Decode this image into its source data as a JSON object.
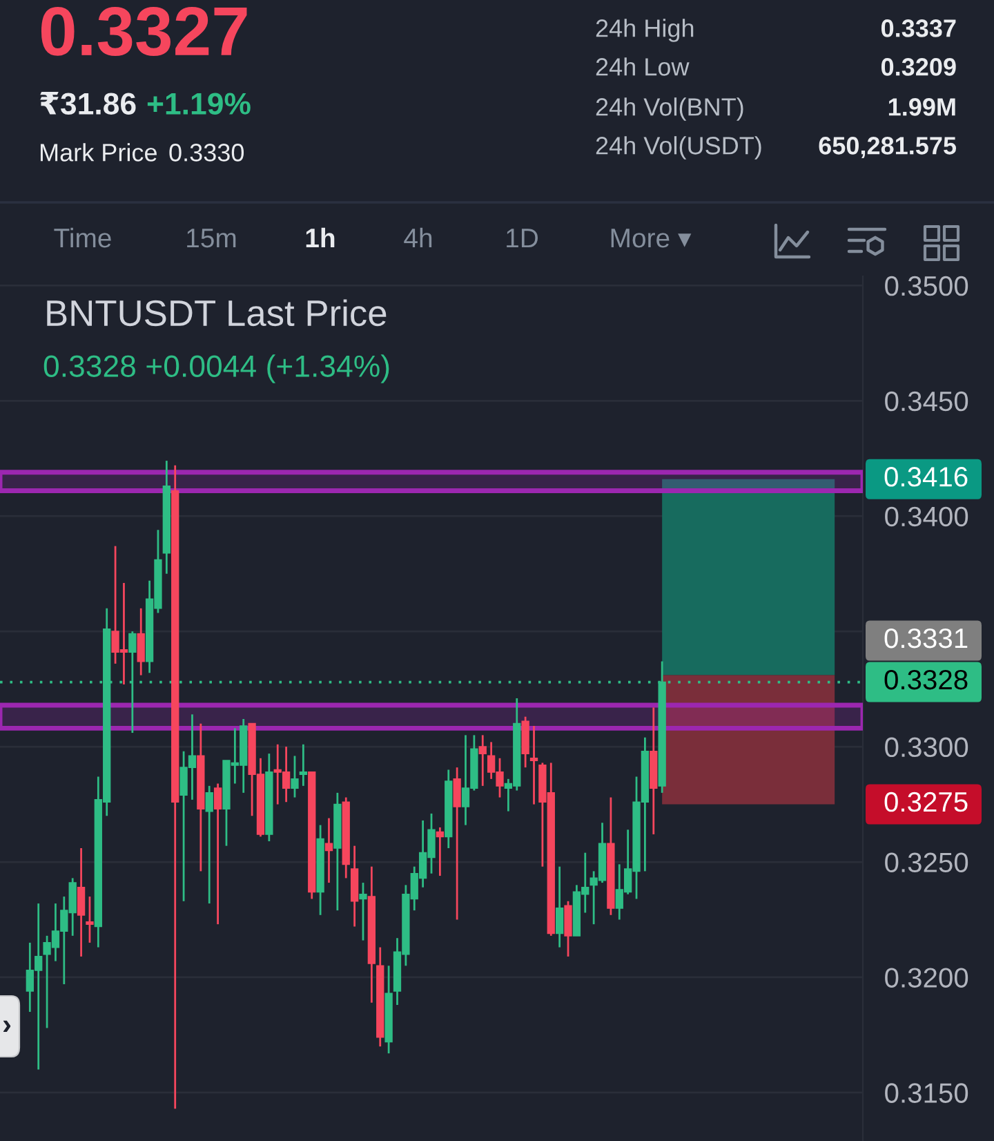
{
  "chart_data": {
    "type": "candlestick",
    "title": "BNTUSDT Last Price",
    "subtitle": "0.3328 +0.0044 (+1.34%)",
    "categories": [
      null,
      null,
      null,
      null,
      null,
      null,
      null,
      null,
      null,
      null,
      null,
      null,
      null,
      null,
      null,
      null,
      null,
      null,
      null,
      null,
      null,
      null,
      null,
      null,
      null,
      null,
      null,
      null,
      null,
      null,
      null,
      null,
      null,
      null,
      null,
      null,
      null,
      null,
      null,
      null,
      null,
      null,
      null,
      null,
      null,
      null,
      null,
      null,
      null,
      null,
      null,
      null,
      null,
      null,
      null,
      null,
      null,
      null,
      null,
      null,
      null,
      null,
      null,
      null,
      null,
      null,
      null,
      null,
      null,
      null,
      null,
      null,
      null,
      null,
      null,
      null,
      null,
      null,
      null,
      null,
      null,
      null,
      null,
      null,
      null,
      null,
      null,
      null,
      null,
      null,
      null,
      null,
      null,
      null,
      null,
      null,
      null,
      null,
      null,
      null,
      null
    ],
    "ohlc": [
      null,
      null,
      null,
      [
        0.3194,
        0.3215,
        0.3185,
        0.3203
      ],
      [
        0.3203,
        0.3232,
        0.316,
        0.3209
      ],
      [
        0.321,
        0.3218,
        0.3178,
        0.3215
      ],
      [
        0.3213,
        0.3232,
        0.3207,
        0.322
      ],
      [
        0.322,
        0.3235,
        0.3197,
        0.3229
      ],
      [
        0.3228,
        0.3243,
        0.3218,
        0.3241
      ],
      [
        0.3239,
        0.3256,
        0.3209,
        0.3227
      ],
      [
        0.3224,
        0.3235,
        0.3215,
        0.3223
      ],
      [
        0.3222,
        0.3287,
        0.3213,
        0.3277
      ],
      [
        0.3276,
        0.336,
        0.327,
        0.3351
      ],
      [
        0.335,
        0.3387,
        0.3336,
        0.3341
      ],
      [
        0.3342,
        0.3371,
        0.3327,
        0.3341
      ],
      [
        0.3341,
        0.335,
        0.3306,
        0.3349
      ],
      [
        0.3349,
        0.336,
        0.3331,
        0.3337
      ],
      [
        0.3337,
        0.3372,
        0.3332,
        0.3364
      ],
      [
        0.336,
        0.3394,
        0.3358,
        0.3381
      ],
      [
        0.3384,
        0.3424,
        0.3375,
        0.3413
      ],
      [
        0.3411,
        0.3422,
        0.3143,
        0.3276
      ],
      [
        0.3279,
        0.3298,
        0.3233,
        0.3291
      ],
      [
        0.3291,
        0.3314,
        0.3277,
        0.3296
      ],
      [
        0.3296,
        0.331,
        0.3246,
        0.3273
      ],
      [
        0.3272,
        0.3283,
        0.3232,
        0.328
      ],
      [
        0.3282,
        0.3284,
        0.3223,
        0.3273
      ],
      [
        0.3273,
        0.3294,
        0.3257,
        0.3294
      ],
      [
        0.3292,
        0.3308,
        0.3284,
        0.3293
      ],
      [
        0.3292,
        0.3312,
        0.328,
        0.3309
      ],
      [
        0.331,
        0.331,
        0.327,
        0.3288
      ],
      [
        0.3288,
        0.3295,
        0.3261,
        0.3262
      ],
      [
        0.3262,
        0.3297,
        0.3259,
        0.3289
      ],
      [
        0.329,
        0.3301,
        0.3275,
        0.3289
      ],
      [
        0.3289,
        0.33,
        0.3276,
        0.3282
      ],
      [
        0.3282,
        0.3296,
        0.3278,
        0.3286
      ],
      [
        0.3288,
        0.3301,
        0.3283,
        0.3289
      ],
      [
        0.3289,
        0.3289,
        0.3234,
        0.3237
      ],
      [
        0.3237,
        0.3266,
        0.3227,
        0.326
      ],
      [
        0.3258,
        0.3269,
        0.3241,
        0.3255
      ],
      [
        0.3256,
        0.328,
        0.3229,
        0.3275
      ],
      [
        0.3276,
        0.3278,
        0.3243,
        0.3249
      ],
      [
        0.3247,
        0.3257,
        0.3222,
        0.3233
      ],
      [
        0.3234,
        0.3241,
        0.3216,
        0.3236
      ],
      [
        0.3235,
        0.3248,
        0.3189,
        0.3206
      ],
      [
        0.3205,
        0.3213,
        0.317,
        0.3174
      ],
      [
        0.3172,
        0.3205,
        0.3167,
        0.3193
      ],
      [
        0.3194,
        0.3217,
        0.3188,
        0.3211
      ],
      [
        0.321,
        0.324,
        0.3205,
        0.3236
      ],
      [
        0.3234,
        0.3248,
        0.3229,
        0.3245
      ],
      [
        0.3243,
        0.3268,
        0.3239,
        0.3254
      ],
      [
        0.3252,
        0.3271,
        0.3245,
        0.3264
      ],
      [
        0.3263,
        0.3265,
        0.3244,
        0.3261
      ],
      [
        0.3261,
        0.329,
        0.3256,
        0.3285
      ],
      [
        0.3286,
        0.3291,
        0.3225,
        0.3274
      ],
      [
        0.3274,
        0.3305,
        0.3266,
        0.3282
      ],
      [
        0.3282,
        0.3305,
        0.3281,
        0.3299
      ],
      [
        0.33,
        0.3305,
        0.3283,
        0.3297
      ],
      [
        0.3296,
        0.3302,
        0.3286,
        0.3289
      ],
      [
        0.3289,
        0.3295,
        0.3278,
        0.3283
      ],
      [
        0.3282,
        0.3286,
        0.3272,
        0.3284
      ],
      [
        0.3283,
        0.3321,
        0.3281,
        0.331
      ],
      [
        0.3311,
        0.3313,
        0.3291,
        0.3297
      ],
      [
        0.3295,
        0.3309,
        0.3275,
        0.3294
      ],
      [
        0.3292,
        0.3293,
        0.3248,
        0.3276
      ],
      [
        0.328,
        0.3293,
        0.3218,
        0.3219
      ],
      [
        0.3219,
        0.3248,
        0.3213,
        0.323
      ],
      [
        0.3231,
        0.3233,
        0.3209,
        0.3218
      ],
      [
        0.3218,
        0.324,
        0.3218,
        0.3237
      ],
      [
        0.3236,
        0.3254,
        0.3228,
        0.3239
      ],
      [
        0.324,
        0.3246,
        0.3223,
        0.3243
      ],
      [
        0.3242,
        0.3267,
        0.3241,
        0.3258
      ],
      [
        0.3258,
        0.3278,
        0.3227,
        0.323
      ],
      [
        0.323,
        0.3249,
        0.3225,
        0.3238
      ],
      [
        0.3237,
        0.3264,
        0.3236,
        0.3247
      ],
      [
        0.3246,
        0.3287,
        0.3234,
        0.3276
      ],
      [
        0.3276,
        0.3304,
        0.3246,
        0.3298
      ],
      [
        0.3298,
        0.3317,
        0.3262,
        0.3282
      ],
      [
        0.3283,
        0.3337,
        0.328,
        0.3328
      ],
      null,
      null,
      null,
      null,
      null,
      null,
      null,
      null,
      null,
      null,
      null,
      null,
      null,
      null,
      null,
      null,
      null,
      null,
      null,
      null,
      null,
      null,
      null
    ],
    "colors": [
      null,
      null,
      null,
      "#2ebd85",
      "#2ebd85",
      "#2ebd85",
      "#2ebd85",
      "#2ebd85",
      "#2ebd85",
      "#f6465d",
      "#f6465d",
      "#2ebd85",
      "#2ebd85",
      "#f6465d",
      "#f6465d",
      "#2ebd85",
      "#f6465d",
      "#2ebd85",
      "#2ebd85",
      "#2ebd85",
      "#f6465d",
      "#2ebd85",
      "#2ebd85",
      "#f6465d",
      "#2ebd85",
      "#f6465d",
      "#2ebd85",
      "#2ebd85",
      "#2ebd85",
      "#f6465d",
      "#f6465d",
      "#2ebd85",
      "#f6465d",
      "#f6465d",
      "#2ebd85",
      "#2ebd85",
      "#f6465d",
      "#2ebd85",
      "#f6465d",
      "#2ebd85",
      "#f6465d",
      "#f6465d",
      "#2ebd85",
      "#f6465d",
      "#f6465d",
      "#2ebd85",
      "#2ebd85",
      "#2ebd85",
      "#2ebd85",
      "#2ebd85",
      "#2ebd85",
      "#f6465d",
      "#2ebd85",
      "#f6465d",
      "#2ebd85",
      "#2ebd85",
      "#f6465d",
      "#f6465d",
      "#f6465d",
      "#2ebd85",
      "#2ebd85",
      "#f6465d",
      "#f6465d",
      "#f6465d",
      "#f6465d",
      "#2ebd85",
      "#f6465d",
      "#2ebd85",
      "#2ebd85",
      "#2ebd85",
      "#2ebd85",
      "#f6465d",
      "#2ebd85",
      "#2ebd85",
      "#2ebd85",
      "#2ebd85",
      "#f6465d",
      "#2ebd85",
      null,
      null,
      null,
      null,
      null,
      null,
      null,
      null,
      null,
      null,
      null,
      null,
      null,
      null,
      null,
      null,
      null,
      null,
      null,
      null,
      null,
      null,
      null
    ],
    "bands": [
      {
        "axis": "y",
        "from": 0.3411,
        "to": 0.3419,
        "color": "#9c27b0"
      },
      {
        "axis": "y",
        "from": 0.3308,
        "to": 0.3318,
        "color": "#9c27b0"
      },
      {
        "axis": "y",
        "from": 0.3331,
        "to": 0.3416,
        "label": "0.3416",
        "color": "#176b5e"
      },
      {
        "axis": "y",
        "from": 0.3331,
        "to": 0.3275,
        "label": "0.3275",
        "color": "#7a2e3a"
      }
    ],
    "ref_lines": [
      {
        "axis": "y",
        "value": 0.3328,
        "label": "0.3328",
        "color": "#2ebd85",
        "line_style": "dotted"
      }
    ],
    "annotations": [
      "0.3327",
      "₹31.86",
      "+1.19%",
      "Mark Price",
      "0.3330",
      "24h High",
      "0.3337",
      "24h Low",
      "0.3209",
      "24h Vol(BNT)",
      "1.99M",
      "24h Vol(USDT)",
      "650,281.575",
      "Time",
      "15m",
      "1h",
      "4h",
      "1D",
      "More ▾",
      "›",
      "0.3331"
    ],
    "ylim": [
      0.3129,
      0.3504
    ],
    "yticks": [
      {
        "value": 0.315,
        "label": "0.3150"
      },
      {
        "value": 0.32,
        "label": "0.3200"
      },
      {
        "value": 0.325,
        "label": "0.3250"
      },
      {
        "value": 0.33,
        "label": "0.3300"
      },
      {
        "value": 0.335,
        "label": null
      },
      {
        "value": 0.34,
        "label": "0.3400"
      },
      {
        "value": 0.345,
        "label": "0.3450"
      },
      {
        "value": 0.35,
        "label": "0.3500"
      }
    ],
    "grid": "y",
    "tick_labels": "y"
  }
}
